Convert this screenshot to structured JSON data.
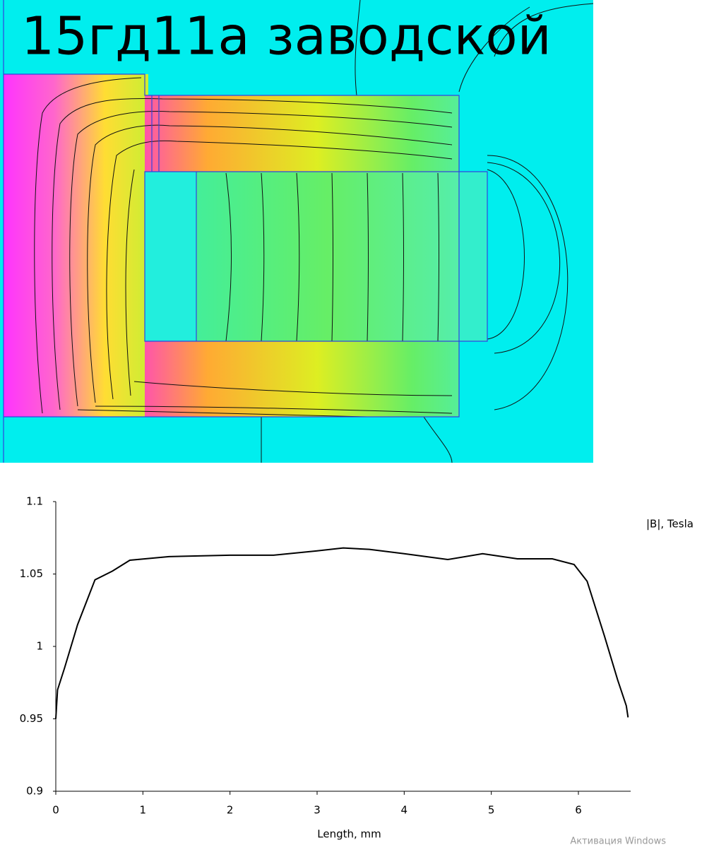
{
  "field_plot": {
    "title": "15гд11а заводской"
  },
  "chart_data": {
    "type": "line",
    "x_label": "Length, mm",
    "x": [
      0,
      0.02,
      0.1,
      0.25,
      0.45,
      0.65,
      0.85,
      1.3,
      2,
      2.5,
      3,
      3.3,
      3.6,
      4,
      4.5,
      4.9,
      5.3,
      5.7,
      5.95,
      6.1,
      6.3,
      6.45,
      6.55,
      6.57
    ],
    "series": [
      {
        "name": "|B|, Tesla",
        "color": "#000000",
        "values": [
          0.95,
          0.97,
          0.985,
          1.015,
          1.046,
          1.052,
          1.0595,
          1.062,
          1.063,
          1.063,
          1.066,
          1.068,
          1.067,
          1.064,
          1.06,
          1.064,
          1.0605,
          1.0605,
          1.0566,
          1.045,
          1.007,
          0.977,
          0.959,
          0.951
        ]
      }
    ],
    "xlim": [
      0,
      6.6
    ],
    "ylim": [
      0.9,
      1.1
    ],
    "xticks": [
      0,
      1,
      2,
      3,
      4,
      5,
      6
    ],
    "yticks": [
      0.9,
      0.95,
      1,
      1.05,
      1.1
    ]
  },
  "watermark": "Активация Windows"
}
